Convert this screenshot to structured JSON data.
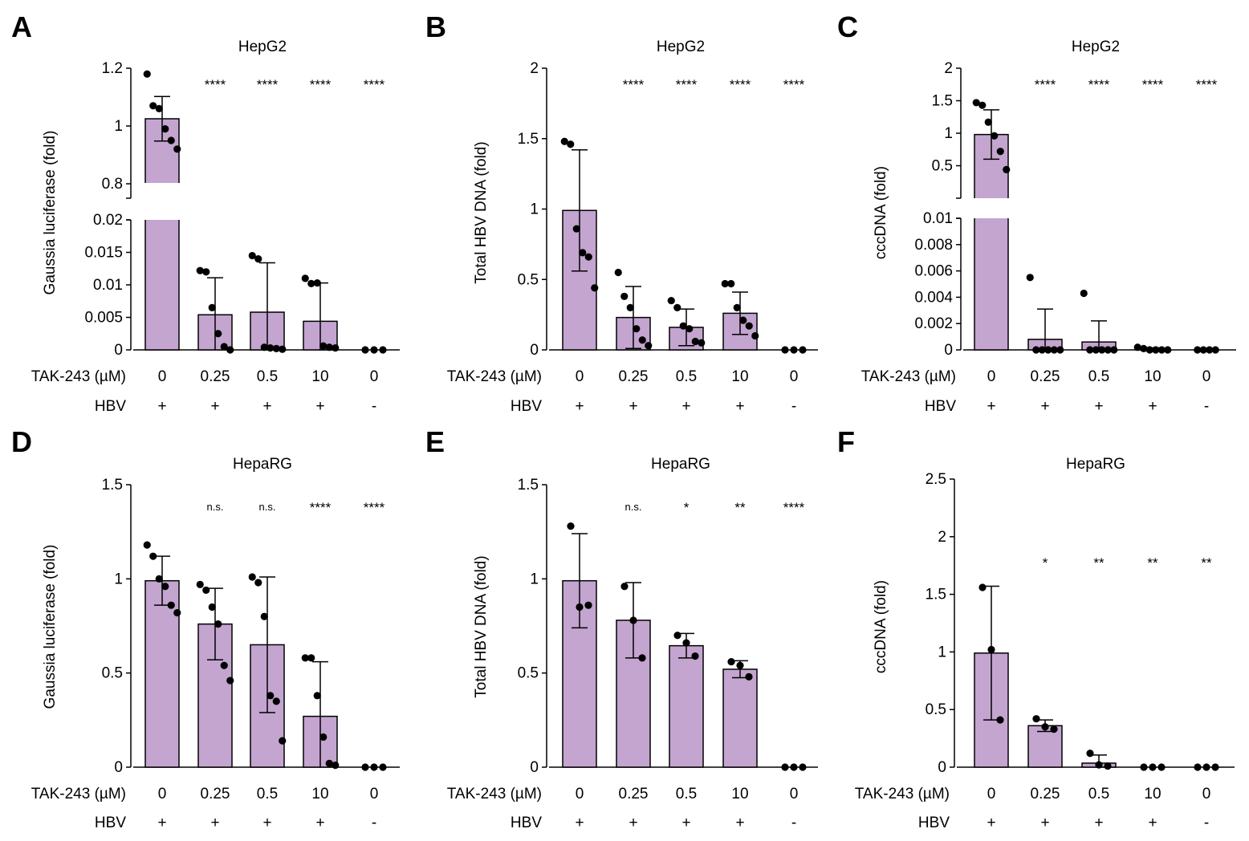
{
  "figure": {
    "bar_color": "#c3a5d0",
    "row_labels": {
      "condition": "TAK-243 (µM)",
      "virus": "HBV"
    }
  },
  "chart_data": [
    {
      "panel": "A",
      "type": "bar",
      "title": "HepG2",
      "ylabel": "Gaussia luciferase (fold)",
      "categories": [
        "0",
        "0.25",
        "0.5",
        "10",
        "0"
      ],
      "hbv": [
        "+",
        "+",
        "+",
        "+",
        "-"
      ],
      "values": [
        1.025,
        0.0054,
        0.0058,
        0.0044,
        0
      ],
      "sd": [
        0.077,
        0.0057,
        0.0076,
        0.0059,
        0
      ],
      "points": [
        [
          1.18,
          1.07,
          1.06,
          0.99,
          0.95,
          0.92
        ],
        [
          0.0122,
          0.012,
          0.0065,
          0.0025,
          0.0005,
          0
        ],
        [
          0.0145,
          0.014,
          0.0004,
          0.0003,
          0.0002,
          0.0001
        ],
        [
          0.011,
          0.0102,
          0.0103,
          0.0006,
          0.0004,
          0.0003
        ],
        [
          0,
          0,
          0
        ]
      ],
      "significance": [
        "",
        "****",
        "****",
        "****",
        "****"
      ],
      "broken_axis": true,
      "lower_range": [
        0,
        0.02
      ],
      "lower_ticks": [
        0,
        0.005,
        0.01,
        0.015,
        0.02
      ],
      "lower_tick_labels": [
        "0",
        "0.005",
        "0.01",
        "0.015",
        "0.02"
      ],
      "upper_range": [
        0.75,
        1.2
      ],
      "upper_ticks": [
        0.8,
        1,
        1.2
      ],
      "upper_tick_labels": [
        "0.8",
        "1",
        "1.2"
      ]
    },
    {
      "panel": "B",
      "type": "bar",
      "title": "HepG2",
      "ylabel": "Total HBV DNA (fold)",
      "categories": [
        "0",
        "0.25",
        "0.5",
        "10",
        "0"
      ],
      "hbv": [
        "+",
        "+",
        "+",
        "+",
        "-"
      ],
      "values": [
        0.99,
        0.23,
        0.16,
        0.26,
        0
      ],
      "sd": [
        0.43,
        0.22,
        0.13,
        0.15,
        0
      ],
      "points": [
        [
          1.48,
          1.46,
          0.86,
          0.69,
          0.66,
          0.44
        ],
        [
          0.55,
          0.38,
          0.3,
          0.15,
          0.07,
          0.03
        ],
        [
          0.35,
          0.3,
          0.17,
          0.15,
          0.06,
          0.05
        ],
        [
          0.47,
          0.47,
          0.3,
          0.21,
          0.17,
          0.1
        ],
        [
          0,
          0,
          0
        ]
      ],
      "significance": [
        "",
        "****",
        "****",
        "****",
        "****"
      ],
      "ylim": [
        0,
        2
      ],
      "yticks": [
        0,
        0.5,
        1,
        1.5,
        2
      ],
      "ytick_labels": [
        "0",
        "0.5",
        "1",
        "1.5",
        "2"
      ]
    },
    {
      "panel": "C",
      "type": "bar",
      "title": "HepG2",
      "ylabel": "cccDNA (fold)",
      "categories": [
        "0",
        "0.25",
        "0.5",
        "10",
        "0"
      ],
      "hbv": [
        "+",
        "+",
        "+",
        "+",
        "-"
      ],
      "values": [
        0.98,
        0.0008,
        0.0006,
        0.0001,
        0
      ],
      "sd": [
        0.38,
        0.0023,
        0.0016,
        5e-05,
        0
      ],
      "points": [
        [
          1.47,
          1.43,
          1.17,
          0.96,
          0.72,
          0.44
        ],
        [
          0.0055,
          0,
          0,
          0,
          0,
          0
        ],
        [
          0.0043,
          0,
          0,
          0,
          0,
          0
        ],
        [
          0.0002,
          0.0001,
          0,
          0,
          0,
          0
        ],
        [
          0,
          0,
          0,
          0
        ]
      ],
      "significance": [
        "",
        "****",
        "****",
        "****",
        "****"
      ],
      "broken_axis": true,
      "lower_range": [
        0,
        0.01
      ],
      "lower_ticks": [
        0,
        0.002,
        0.004,
        0.006,
        0.008,
        0.01
      ],
      "lower_tick_labels": [
        "0",
        "0.002",
        "0.004",
        "0.006",
        "0.008",
        "0.01"
      ],
      "upper_range": [
        0,
        2
      ],
      "upper_ticks": [
        0.5,
        1,
        1.5,
        2
      ],
      "upper_tick_labels": [
        "0.5",
        "1",
        "1.5",
        "2"
      ]
    },
    {
      "panel": "D",
      "type": "bar",
      "title": "HepaRG",
      "ylabel": "Gaussia luciferase (fold)",
      "categories": [
        "0",
        "0.25",
        "0.5",
        "10",
        "0"
      ],
      "hbv": [
        "+",
        "+",
        "+",
        "+",
        "-"
      ],
      "values": [
        0.99,
        0.76,
        0.65,
        0.27,
        0
      ],
      "sd": [
        0.13,
        0.19,
        0.36,
        0.29,
        0
      ],
      "points": [
        [
          1.18,
          1.12,
          1.0,
          0.96,
          0.86,
          0.82
        ],
        [
          0.97,
          0.94,
          0.85,
          0.76,
          0.54,
          0.46
        ],
        [
          1.01,
          0.98,
          0.8,
          0.38,
          0.35,
          0.14
        ],
        [
          0.58,
          0.58,
          0.38,
          0.16,
          0.02,
          0.01
        ],
        [
          0,
          0,
          0
        ]
      ],
      "significance": [
        "",
        "n.s.",
        "n.s.",
        "****",
        "****"
      ],
      "ylim": [
        0,
        1.5
      ],
      "yticks": [
        0,
        0.5,
        1,
        1.5
      ],
      "ytick_labels": [
        "0",
        "0.5",
        "1",
        "1.5"
      ]
    },
    {
      "panel": "E",
      "type": "bar",
      "title": "HepaRG",
      "ylabel": "Total HBV DNA (fold)",
      "categories": [
        "0",
        "0.25",
        "0.5",
        "10",
        "0"
      ],
      "hbv": [
        "+",
        "+",
        "+",
        "+",
        "-"
      ],
      "values": [
        0.99,
        0.78,
        0.645,
        0.52,
        0
      ],
      "sd": [
        0.25,
        0.2,
        0.065,
        0.045,
        0
      ],
      "points": [
        [
          1.28,
          0.85,
          0.86
        ],
        [
          0.96,
          0.78,
          0.58
        ],
        [
          0.7,
          0.66,
          0.59
        ],
        [
          0.56,
          0.54,
          0.48
        ],
        [
          0,
          0,
          0
        ]
      ],
      "significance": [
        "",
        "n.s.",
        "*",
        "**",
        "****"
      ],
      "ylim": [
        0,
        1.5
      ],
      "yticks": [
        0,
        0.5,
        1,
        1.5
      ],
      "ytick_labels": [
        "0",
        "0.5",
        "1",
        "1.5"
      ]
    },
    {
      "panel": "F",
      "type": "bar",
      "title": "HepaRG",
      "ylabel": "cccDNA (fold)",
      "categories": [
        "0",
        "0.25",
        "0.5",
        "10",
        "0"
      ],
      "hbv": [
        "+",
        "+",
        "+",
        "+",
        "-"
      ],
      "values": [
        0.99,
        0.36,
        0.035,
        0,
        0
      ],
      "sd": [
        0.58,
        0.05,
        0.07,
        0,
        0
      ],
      "points": [
        [
          1.56,
          1.02,
          0.41
        ],
        [
          0.42,
          0.35,
          0.33
        ],
        [
          0.12,
          0.02,
          0.01
        ],
        [
          0,
          0,
          0
        ],
        [
          0,
          0,
          0
        ]
      ],
      "significance": [
        "",
        "*",
        "**",
        "**",
        "**"
      ],
      "ylim": [
        0,
        2.5
      ],
      "yticks": [
        0,
        0.5,
        1,
        1.5,
        2,
        2.5
      ],
      "ytick_labels": [
        "0",
        "0.5",
        "1",
        "1.5",
        "2",
        "2.5"
      ]
    }
  ]
}
